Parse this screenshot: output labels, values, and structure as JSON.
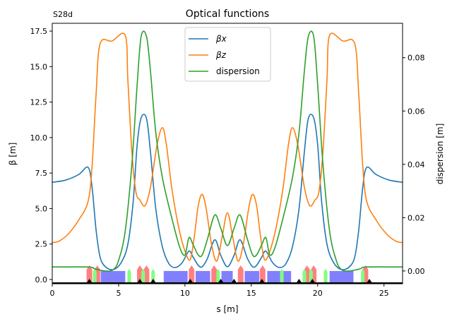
{
  "chart_data": {
    "type": "line",
    "title": "Optical functions",
    "corner_label": "S28d",
    "xlabel": "s [m]",
    "ylabel": "β [m]",
    "y2label": "dispersion [m]",
    "xlim": [
      0,
      26.4
    ],
    "ylim": [
      -0.3,
      18.05
    ],
    "y2lim": [
      -0.0048,
      0.0929
    ],
    "xticks": [
      "0",
      "5",
      "10",
      "15",
      "20",
      "25"
    ],
    "yticks": [
      "0.0",
      "2.5",
      "5.0",
      "7.5",
      "10.0",
      "12.5",
      "15.0",
      "17.5"
    ],
    "y2ticks": [
      "0.00",
      "0.02",
      "0.04",
      "0.06",
      "0.08"
    ],
    "legend": {
      "placement": "top-center",
      "entries": [
        "βx",
        "βz",
        "dispersion"
      ]
    },
    "symmetry_center": 13.2,
    "series": [
      {
        "name": "βx",
        "axis": "left",
        "color": "#1f77b4",
        "s": [
          0,
          1,
          2,
          2.7,
          3.0,
          3.3,
          3.6,
          4.0,
          4.6,
          5.2,
          5.7,
          6.1,
          6.4,
          6.7,
          7.1,
          7.4,
          7.8,
          8.3,
          8.8,
          9.3,
          9.8,
          10.3,
          10.6,
          11.0,
          11.3,
          11.7,
          12.25,
          12.7,
          13.2
        ],
        "values": [
          6.85,
          7.0,
          7.4,
          7.9,
          6.5,
          3.5,
          1.6,
          0.9,
          0.7,
          1.2,
          2.5,
          5.5,
          9.5,
          11.4,
          11.35,
          9.0,
          5.0,
          2.3,
          1.1,
          0.85,
          1.2,
          2.0,
          1.6,
          1.0,
          0.9,
          1.5,
          2.8,
          1.7,
          0.9
        ]
      },
      {
        "name": "βz",
        "axis": "left",
        "color": "#ff7f0e",
        "s": [
          0,
          0.5,
          1.2,
          2.0,
          2.7,
          3.0,
          3.3,
          3.6,
          4.5,
          5.5,
          5.7,
          6.0,
          6.3,
          6.6,
          7.0,
          7.4,
          7.9,
          8.3,
          8.6,
          9.0,
          9.5,
          10.0,
          10.4,
          10.7,
          11.0,
          11.3,
          11.6,
          12.0,
          12.4,
          12.8,
          13.2
        ],
        "values": [
          2.6,
          2.7,
          3.2,
          4.2,
          5.5,
          8.0,
          13.0,
          16.6,
          16.8,
          17.2,
          14.0,
          9.0,
          6.2,
          5.6,
          5.2,
          6.5,
          9.5,
          10.7,
          9.5,
          6.5,
          3.8,
          2.0,
          1.4,
          3.0,
          5.2,
          6.0,
          5.0,
          2.5,
          1.3,
          3.0,
          4.7
        ]
      },
      {
        "name": "dispersion",
        "axis": "right",
        "color": "#2ca02c",
        "s": [
          0,
          2.7,
          3.2,
          4.0,
          4.6,
          5.0,
          5.5,
          6.0,
          6.4,
          6.7,
          7.1,
          7.4,
          7.8,
          8.3,
          9.0,
          9.6,
          10.0,
          10.3,
          10.6,
          11.0,
          11.3,
          11.7,
          12.25,
          12.7,
          13.2
        ],
        "values": [
          0.0015,
          0.0015,
          0.0008,
          0.0,
          0.0005,
          0.004,
          0.015,
          0.04,
          0.07,
          0.088,
          0.088,
          0.075,
          0.052,
          0.035,
          0.02,
          0.009,
          0.006,
          0.0125,
          0.01,
          0.006,
          0.006,
          0.012,
          0.021,
          0.016,
          0.0095
        ]
      }
    ],
    "lattice": {
      "dipoles": [
        [
          3.65,
          5.5
        ],
        [
          8.4,
          10.2
        ],
        [
          10.8,
          11.9
        ],
        [
          12.75,
          13.6
        ],
        [
          14.5,
          15.6
        ],
        [
          16.2,
          18.0
        ],
        [
          20.9,
          22.7
        ]
      ],
      "quadrupoles": [
        2.8,
        3.4,
        6.6,
        7.1,
        10.5,
        12.2,
        14.2,
        15.85,
        19.2,
        19.7,
        23.6
      ],
      "sextupoles": [
        3.2,
        5.8,
        6.85,
        7.6,
        12.5,
        17.3,
        19.0,
        19.5,
        20.6,
        23.4
      ],
      "markers": [
        2.8,
        6.6,
        7.6,
        10.4,
        12.7,
        13.7,
        15.8,
        18.6,
        19.6,
        23.9
      ]
    }
  }
}
